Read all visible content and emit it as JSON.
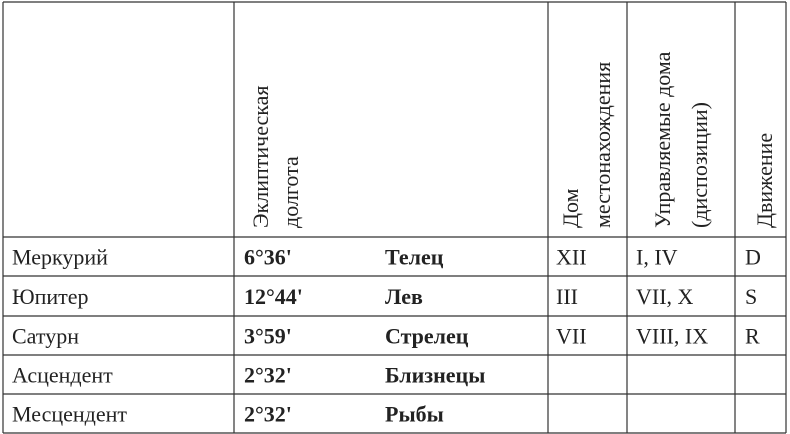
{
  "header": {
    "longitude": [
      "Эклиптическая",
      "долгота"
    ],
    "house": [
      "Дом",
      "местонахождения"
    ],
    "rules": [
      "Управляемые дома",
      "(диспозиции)"
    ],
    "motion": [
      "Движение"
    ]
  },
  "table": {
    "rows": [
      {
        "body": "Меркурий",
        "degree": "6°36'",
        "sign": "Телец",
        "house": "XII",
        "rules": "I, IV",
        "motion": "D"
      },
      {
        "body": "Юпитер",
        "degree": "12°44'",
        "sign": "Лев",
        "house": "III",
        "rules": "VII, X",
        "motion": "S"
      },
      {
        "body": "Сатурн",
        "degree": "3°59'",
        "sign": "Стрелец",
        "house": "VII",
        "rules": "VIII, IX",
        "motion": "R"
      },
      {
        "body": "Асцендент",
        "degree": "2°32'",
        "sign": "Близнецы"
      },
      {
        "body": "Месцендент",
        "degree": "2°32'",
        "sign": "Рыбы"
      }
    ]
  }
}
